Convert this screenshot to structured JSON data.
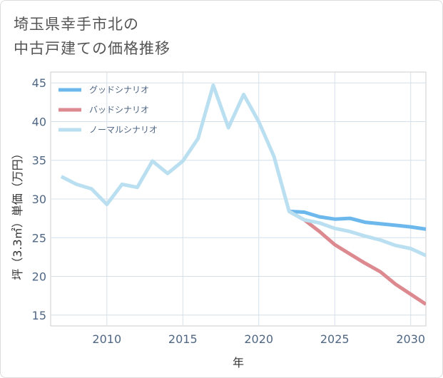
{
  "title_lines": [
    "埼玉県幸手市北の",
    "中古戸建ての価格推移"
  ],
  "chart_data": {
    "type": "line",
    "title": "埼玉県幸手市北の中古戸建ての価格推移",
    "xlabel": "年",
    "ylabel": "坪（3.3㎡）単価（万円）",
    "xlim": [
      2006.3,
      2031
    ],
    "ylim": [
      13.6,
      46.4
    ],
    "xticks": [
      2010,
      2015,
      2020,
      2025,
      2030
    ],
    "yticks": [
      15,
      20,
      25,
      30,
      35,
      40,
      45
    ],
    "grid": true,
    "legend_position": "top-left",
    "series": [
      {
        "name": "グッドシナリオ",
        "color": "#6cb8ec",
        "x": [
          2022,
          2023,
          2024,
          2025,
          2026,
          2027,
          2028,
          2029,
          2030,
          2031
        ],
        "values": [
          28.4,
          28.3,
          27.7,
          27.4,
          27.5,
          27.0,
          26.8,
          26.6,
          26.4,
          26.1
        ]
      },
      {
        "name": "バッドシナリオ",
        "color": "#dc8a90",
        "x": [
          2022,
          2023,
          2024,
          2025,
          2026,
          2027,
          2028,
          2029,
          2030,
          2031
        ],
        "values": [
          28.4,
          27.3,
          25.8,
          24.1,
          22.9,
          21.7,
          20.6,
          19.0,
          17.7,
          16.4
        ]
      },
      {
        "name": "ノーマルシナリオ",
        "color": "#b9dff0",
        "x": [
          2007,
          2008,
          2009,
          2010,
          2011,
          2012,
          2013,
          2014,
          2015,
          2016,
          2017,
          2018,
          2019,
          2020,
          2021,
          2022,
          2023,
          2024,
          2025,
          2026,
          2027,
          2028,
          2029,
          2030,
          2031
        ],
        "values": [
          32.9,
          31.9,
          31.3,
          29.3,
          31.9,
          31.5,
          34.9,
          33.3,
          34.9,
          37.8,
          44.7,
          39.2,
          43.5,
          40.0,
          35.5,
          28.4,
          27.3,
          26.9,
          26.2,
          25.8,
          25.2,
          24.7,
          24.0,
          23.6,
          22.7
        ]
      }
    ]
  }
}
